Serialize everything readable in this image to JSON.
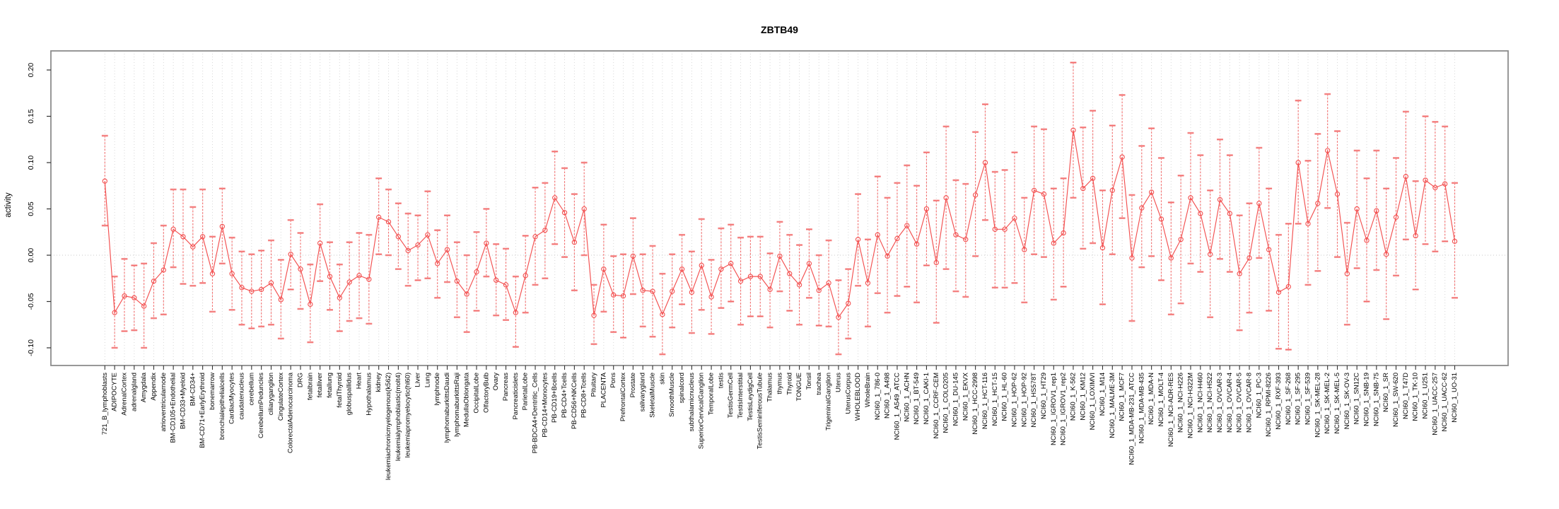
{
  "chart_data": {
    "type": "line",
    "title": "ZBTB49",
    "ylabel": "activity",
    "xlabel": "",
    "legend": "none",
    "grid": "vertical dashed gridline per category; dotted horizontal line at 0",
    "marker": "open-circle with error bars",
    "ylim": [
      -0.119,
      0.221
    ],
    "yticks": [
      0.2,
      0.15,
      0.1,
      0.05,
      0.0,
      -0.05,
      -0.1
    ],
    "ytick_labels": [
      "0.20",
      "0.15",
      "0.10",
      "0.05",
      "0.00",
      "-0.05",
      "-0.10"
    ],
    "colors": {
      "series": "#f34f4f",
      "errorbar_cap": "#f59d9d",
      "errorbar_stem": "#f36262",
      "gridline": "#d7d7d7",
      "zero_line": "#c9c9c9",
      "frame": "#8c8c8c",
      "text": "#000000"
    },
    "categories": [
      "721_B_lymphoblasts",
      "ADIPOCYTE",
      "AdrenalCortex",
      "adrenalgland",
      "Amygdala",
      "Appendix",
      "atrioventricularnode",
      "BM-CD105+Endothelial",
      "BM-CD33+Myeloid",
      "BM-CD34+",
      "BM-CD71+EarlyErythroid",
      "bonemarrow",
      "bronchialepithelialcells",
      "CardiacMyocytes",
      "caudatenucleus",
      "cerebellum",
      "CerebellumPeduncles",
      "ciliaryganglion",
      "CingulateCortex",
      "ColorectalAdenocarcinoma",
      "DRG",
      "fetalbrain",
      "fetalliver",
      "fetallung",
      "fetalThyroid",
      "globuspallidus",
      "Heart",
      "Hypothalamus",
      "kidney",
      "leukemiachronicmyelogenous(k562)",
      "leukemialymphoblastic(molt4)",
      "leukemiapromyelocytic(hl60)",
      "Liver",
      "Lung",
      "lymphnode",
      "lymphomaburkittsDaudi",
      "lymphomaburkittsRaji",
      "MedullaOblongata",
      "OccipitalLobe",
      "OlfactoryBulb",
      "Ovary",
      "Pancreas",
      "Pancreaticislets",
      "ParietalLobe",
      "PB-BDCA4+Dentritic_Cells",
      "PB-CD14+Monocytes",
      "PB-CD19+Bcells",
      "PB-CD4+Tcells",
      "PB-CD56+NKCells",
      "PB-CD8+Tcells",
      "Pituitary",
      "PLACENTA",
      "Pons",
      "PrefrontalCortex",
      "Prostate",
      "salivarygland",
      "SkeletalMuscle",
      "skin",
      "SmoothMuscle",
      "spinalcord",
      "subthalamicnucleus",
      "SuperiorCervicalGanglion",
      "TemporalLobe",
      "testis",
      "TestisGermCell",
      "TestisInterstitial",
      "TestisLeydigCell",
      "TestisSeminiferousTubule",
      "Thalamus",
      "thymus",
      "Thyroid",
      "TONGUE",
      "Tonsil",
      "trachea",
      "TrigeminalGanglion",
      "Uterus",
      "UterusCorpus",
      "WHOLEBLOOD",
      "WholeBrain",
      "NCI60_1_786-0",
      "NCI60_1_A498",
      "NCI60_1_A549_ATCC",
      "NCI60_1_ACHN",
      "NCI60_1_BT-549",
      "NCI60_1_CAKI-1",
      "NCI60_1_CCRF-CEM",
      "NCI60_1_COLO205",
      "NCI60_1_DU-145",
      "NCI60_1_EKVX",
      "NCI60_1_HCC-2998",
      "NCI60_1_HCT-116",
      "NCI60_1_HCT-15",
      "NCI60_1_HL-60",
      "NCI60_1_HOP-62",
      "NCI60_1_HOP-92",
      "NCI60_1_HS578T",
      "NCI60_1_HT29",
      "NCI60_1_IGROV1_rep1",
      "NCI60_1_IGROV1_rep2",
      "NCI60_1_K-562",
      "NCI60_1_KM12",
      "NCI60_1_LOXIMVI",
      "NCI60_1_M14",
      "NCI60_1_MALME-3M",
      "NCI60_1_MCF7",
      "NCI60_1_MDA-MB-231_ATCC",
      "NCI60_1_MDA-MB-435",
      "NCI60_1_MDA-N",
      "NCI60_1_MOLT-4",
      "NCI60_1_NCI-ADR-RES",
      "NCI60_1_NCI-H226",
      "NCI60_1_NCI-H322M",
      "NCI60_1_NCI-H460",
      "NCI60_1_NCI-H522",
      "NCI60_1_OVCAR-3",
      "NCI60_1_OVCAR-4",
      "NCI60_1_OVCAR-5",
      "NCI60_1_OVCAR-8",
      "NCI60_1_PC-3",
      "NCI60_1_RPMI-8226",
      "NCI60_1_RXF-393",
      "NCI60_1_SF-268",
      "NCI60_1_SF-295",
      "NCI60_1_SF-539",
      "NCI60_1_SK-MEL-28",
      "NCI60_1_SK-MEL-2",
      "NCI60_1_SK-MEL-5",
      "NCI60_1_SK-OV-3",
      "NCI60_1_SN12C",
      "NCI60_1_SNB-19",
      "NCI60_1_SNB-75",
      "NCI60_1_SR",
      "NCI60_1_SW-620",
      "NCI60_1_T47D",
      "NCI60_1_TK-10",
      "NCI60_1_U251",
      "NCI60_1_UACC-257",
      "NCI60_1_UACC-62",
      "NCI60_1_UO-31"
    ],
    "values": [
      0.08,
      -0.062,
      -0.044,
      -0.046,
      -0.055,
      -0.028,
      -0.016,
      0.028,
      0.02,
      0.009,
      0.02,
      -0.02,
      0.031,
      -0.02,
      -0.035,
      -0.039,
      -0.037,
      -0.03,
      -0.048,
      0.001,
      -0.015,
      -0.053,
      0.013,
      -0.023,
      -0.046,
      -0.029,
      -0.022,
      -0.026,
      0.041,
      0.036,
      0.02,
      0.005,
      0.011,
      0.022,
      -0.009,
      0.006,
      -0.028,
      -0.042,
      -0.018,
      0.013,
      -0.027,
      -0.032,
      -0.062,
      -0.022,
      0.02,
      0.027,
      0.062,
      0.046,
      0.014,
      0.05,
      -0.065,
      -0.015,
      -0.043,
      -0.044,
      -0.001,
      -0.038,
      -0.039,
      -0.064,
      -0.039,
      -0.015,
      -0.04,
      -0.011,
      -0.045,
      -0.015,
      -0.009,
      -0.028,
      -0.023,
      -0.023,
      -0.037,
      -0.001,
      -0.02,
      -0.032,
      -0.009,
      -0.038,
      -0.03,
      -0.067,
      -0.052,
      0.017,
      -0.03,
      0.022,
      -0.001,
      0.018,
      0.032,
      0.012,
      0.05,
      -0.008,
      0.062,
      0.022,
      0.017,
      0.065,
      0.1,
      0.028,
      0.028,
      0.04,
      0.006,
      0.07,
      0.066,
      0.013,
      0.024,
      0.135,
      0.072,
      0.083,
      0.008,
      0.07,
      0.106,
      -0.003,
      0.051,
      0.068,
      0.039,
      -0.003,
      0.017,
      0.062,
      0.045,
      0.001,
      0.06,
      0.045,
      -0.02,
      -0.003,
      0.056,
      0.006,
      -0.04,
      -0.034,
      0.1,
      0.034,
      0.056,
      0.113,
      0.066,
      -0.02,
      0.05,
      0.016,
      0.048,
      0.001,
      0.041,
      0.085,
      0.021,
      0.081,
      0.073,
      0.077,
      0.015
    ],
    "err_low": [
      0.032,
      -0.1,
      -0.082,
      -0.081,
      -0.1,
      -0.068,
      -0.064,
      -0.013,
      -0.031,
      -0.033,
      -0.03,
      -0.061,
      -0.009,
      -0.059,
      -0.075,
      -0.079,
      -0.077,
      -0.075,
      -0.09,
      -0.037,
      -0.058,
      -0.094,
      -0.028,
      -0.059,
      -0.082,
      -0.071,
      -0.068,
      -0.074,
      0.001,
      0.0,
      -0.015,
      -0.033,
      -0.027,
      -0.025,
      -0.046,
      -0.029,
      -0.067,
      -0.083,
      -0.06,
      -0.023,
      -0.065,
      -0.07,
      -0.099,
      -0.062,
      -0.032,
      -0.025,
      0.012,
      -0.002,
      -0.038,
      0.0,
      -0.096,
      -0.061,
      -0.083,
      -0.089,
      -0.042,
      -0.077,
      -0.088,
      -0.107,
      -0.078,
      -0.053,
      -0.084,
      -0.059,
      -0.085,
      -0.057,
      -0.05,
      -0.075,
      -0.066,
      -0.066,
      -0.078,
      -0.039,
      -0.06,
      -0.075,
      -0.046,
      -0.076,
      -0.077,
      -0.107,
      -0.09,
      -0.033,
      -0.077,
      -0.041,
      -0.062,
      -0.044,
      -0.034,
      -0.051,
      -0.011,
      -0.073,
      -0.015,
      -0.039,
      -0.045,
      -0.001,
      0.038,
      -0.035,
      -0.035,
      -0.03,
      -0.051,
      0.001,
      -0.002,
      -0.048,
      -0.034,
      0.062,
      0.007,
      0.013,
      -0.053,
      0.001,
      0.04,
      -0.071,
      -0.013,
      -0.001,
      -0.027,
      -0.064,
      -0.052,
      -0.009,
      -0.018,
      -0.067,
      -0.004,
      -0.018,
      -0.081,
      -0.062,
      -0.003,
      -0.06,
      -0.101,
      -0.102,
      0.034,
      -0.032,
      -0.017,
      0.051,
      -0.002,
      -0.075,
      -0.014,
      -0.05,
      -0.016,
      -0.069,
      -0.022,
      0.017,
      -0.037,
      0.012,
      0.004,
      0.015,
      -0.046
    ],
    "err_high": [
      0.129,
      -0.023,
      -0.004,
      -0.011,
      -0.009,
      0.013,
      0.032,
      0.071,
      0.071,
      0.052,
      0.071,
      0.02,
      0.072,
      0.019,
      0.004,
      0.001,
      0.005,
      0.016,
      -0.005,
      0.038,
      0.024,
      -0.01,
      0.055,
      0.014,
      -0.01,
      0.014,
      0.024,
      0.022,
      0.083,
      0.071,
      0.056,
      0.045,
      0.043,
      0.069,
      0.027,
      0.043,
      0.014,
      0.0,
      0.025,
      0.05,
      0.012,
      0.007,
      -0.023,
      0.021,
      0.073,
      0.078,
      0.112,
      0.094,
      0.066,
      0.1,
      -0.032,
      0.033,
      -0.001,
      0.001,
      0.04,
      0.001,
      0.01,
      -0.02,
      0.001,
      0.022,
      0.004,
      0.039,
      -0.005,
      0.029,
      0.033,
      0.019,
      0.02,
      0.02,
      0.002,
      0.036,
      0.022,
      0.011,
      0.028,
      0.0,
      0.016,
      -0.027,
      -0.015,
      0.066,
      0.017,
      0.085,
      0.062,
      0.078,
      0.097,
      0.075,
      0.111,
      0.059,
      0.139,
      0.081,
      0.077,
      0.133,
      0.163,
      0.09,
      0.092,
      0.111,
      0.062,
      0.139,
      0.136,
      0.072,
      0.083,
      0.208,
      0.138,
      0.156,
      0.07,
      0.14,
      0.173,
      0.065,
      0.118,
      0.137,
      0.105,
      0.057,
      0.086,
      0.132,
      0.108,
      0.07,
      0.125,
      0.108,
      0.043,
      0.056,
      0.116,
      0.072,
      0.022,
      0.034,
      0.167,
      0.102,
      0.131,
      0.174,
      0.134,
      0.035,
      0.113,
      0.083,
      0.113,
      0.072,
      0.105,
      0.155,
      0.08,
      0.15,
      0.144,
      0.139,
      0.078
    ]
  }
}
